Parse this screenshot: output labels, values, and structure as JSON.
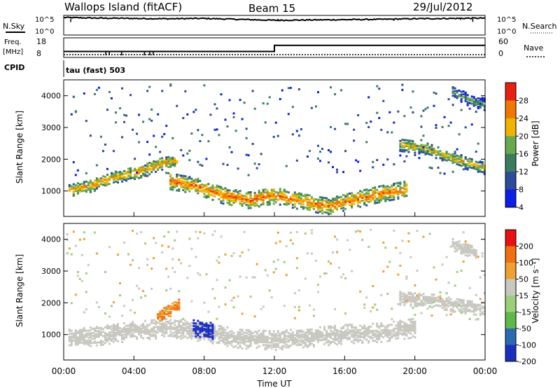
{
  "header": {
    "station": "Wallops Island (fitACF)",
    "beam": "Beam 15",
    "date": "29/Jul/2012"
  },
  "noise_panel": {
    "left_label": "N.Sky",
    "right_label": "N.Search",
    "left_ticks": [
      "10^5",
      "10^0"
    ],
    "right_ticks": [
      "10^5",
      "10^0"
    ]
  },
  "freq_panel": {
    "left_label_line1": "Freq.",
    "left_label_line2": "[MHz]",
    "right_label": "Nave",
    "left_ticks": [
      "18",
      "8"
    ],
    "right_ticks": [
      "60",
      "0"
    ]
  },
  "cpid": {
    "label": "CPID",
    "value": "tau (fast) 503"
  },
  "power_panel": {
    "ylabel": "Slant Range [km]",
    "colorbar_label": "Power [dB]",
    "colorbar_ticks": [
      "28",
      "24",
      "20",
      "16",
      "12",
      "8",
      "4"
    ]
  },
  "velocity_panel": {
    "ylabel": "Slant Range [km]",
    "colorbar_label": "Velocity [m s⁻¹]",
    "colorbar_ticks": [
      "200",
      "100",
      "50",
      "15",
      "-15",
      "-50",
      "-100",
      "-200"
    ]
  },
  "xaxis": {
    "label": "Time UT",
    "ticks": [
      "00:00",
      "04:00",
      "08:00",
      "12:00",
      "16:00",
      "20:00",
      "00:00"
    ]
  },
  "colors": {
    "power": [
      "#0a1ee8",
      "#2e4a9a",
      "#3a7d5e",
      "#6aa84f",
      "#f0b400",
      "#f07800",
      "#e82010"
    ],
    "velocity": [
      "#1a2fc0",
      "#2a6ab0",
      "#5fb84a",
      "#9bd07a",
      "#c8c8c0",
      "#f0a030",
      "#f07010",
      "#e81010"
    ]
  },
  "chart_data": [
    {
      "type": "line",
      "title": "",
      "series": [
        {
          "name": "N.Sky",
          "x": [
            0,
            2,
            4,
            6,
            8,
            10,
            12,
            14,
            16,
            18,
            20,
            22,
            24
          ],
          "y": [
            5.0,
            4.8,
            4.7,
            4.6,
            4.7,
            4.4,
            4.1,
            4.2,
            4.3,
            4.4,
            4.6,
            4.7,
            4.8
          ]
        }
      ],
      "y_log": true,
      "ylim_exp": [
        0,
        5
      ]
    },
    {
      "type": "line",
      "title": "",
      "series": [
        {
          "name": "Freq.",
          "x": [
            0,
            12,
            12,
            24
          ],
          "y": [
            10.5,
            10.5,
            14.5,
            14.5
          ]
        },
        {
          "name": "Nave",
          "x": [
            0,
            24
          ],
          "y": [
            0,
            0
          ]
        }
      ],
      "ylim_freq": [
        8,
        18
      ],
      "ylim_nave": [
        0,
        60
      ]
    },
    {
      "type": "heatmap",
      "title": "",
      "xlabel": "",
      "ylabel": "Slant Range [km]",
      "variable": "Power [dB]",
      "xlim": [
        0,
        24
      ],
      "ylim": [
        200,
        4500
      ],
      "zlim": [
        0,
        30
      ],
      "bands": [
        {
          "label": "evening band",
          "points": [
            [
              0.2,
              1050
            ],
            [
              1.5,
              1200
            ],
            [
              3,
              1500
            ],
            [
              4.3,
              1650
            ],
            [
              5.5,
              1900
            ],
            [
              6.5,
              2000
            ]
          ],
          "width_km": 200,
          "power": 22
        },
        {
          "label": "main band",
          "points": [
            [
              6,
              1350
            ],
            [
              7.5,
              1200
            ],
            [
              9,
              900
            ],
            [
              10.5,
              750
            ],
            [
              12,
              900
            ],
            [
              13.5,
              700
            ],
            [
              15,
              560
            ],
            [
              16.5,
              750
            ],
            [
              18,
              950
            ],
            [
              19.5,
              1100
            ]
          ],
          "width_km": 260,
          "power": 24
        },
        {
          "label": "late band",
          "points": [
            [
              19,
              2500
            ],
            [
              20.5,
              2400
            ],
            [
              22,
              2100
            ],
            [
              23,
              1900
            ],
            [
              24,
              1750
            ]
          ],
          "width_km": 200,
          "power": 20
        },
        {
          "label": "far echoes",
          "points": [
            [
              22,
              4200
            ],
            [
              23,
              3900
            ],
            [
              24,
              3750
            ]
          ],
          "width_km": 180,
          "power": 14
        }
      ]
    },
    {
      "type": "heatmap",
      "title": "",
      "xlabel": "Time UT",
      "ylabel": "Slant Range [km]",
      "variable": "Velocity [m s⁻¹]",
      "xlim": [
        0,
        24
      ],
      "ylim": [
        200,
        4500
      ],
      "zlim": [
        -200,
        200
      ],
      "bands": [
        {
          "label": "ground scatter",
          "points": [
            [
              0.2,
              900
            ],
            [
              2,
              1000
            ],
            [
              4,
              1150
            ],
            [
              6,
              1250
            ],
            [
              8,
              1100
            ],
            [
              10,
              900
            ],
            [
              12,
              850
            ],
            [
              14,
              950
            ],
            [
              16,
              1050
            ],
            [
              18,
              1100
            ],
            [
              20,
              1250
            ]
          ],
          "width_km": 300,
          "velocity": 0
        },
        {
          "label": "late ground scatter",
          "points": [
            [
              19,
              2200
            ],
            [
              21,
              2100
            ],
            [
              23,
              1900
            ],
            [
              24,
              1850
            ]
          ],
          "width_km": 220,
          "velocity": 0
        },
        {
          "label": "receding patch",
          "points": [
            [
              5.3,
              1600
            ],
            [
              6,
              1800
            ],
            [
              6.6,
              2000
            ]
          ],
          "width_km": 200,
          "velocity": -80
        },
        {
          "label": "approaching patch",
          "points": [
            [
              7.3,
              1250
            ],
            [
              8,
              1200
            ],
            [
              8.5,
              1150
            ]
          ],
          "width_km": 260,
          "velocity": 220
        },
        {
          "label": "far ground scatter",
          "points": [
            [
              22,
              3900
            ],
            [
              23.5,
              3600
            ]
          ],
          "width_km": 200,
          "velocity": 0
        }
      ]
    }
  ]
}
